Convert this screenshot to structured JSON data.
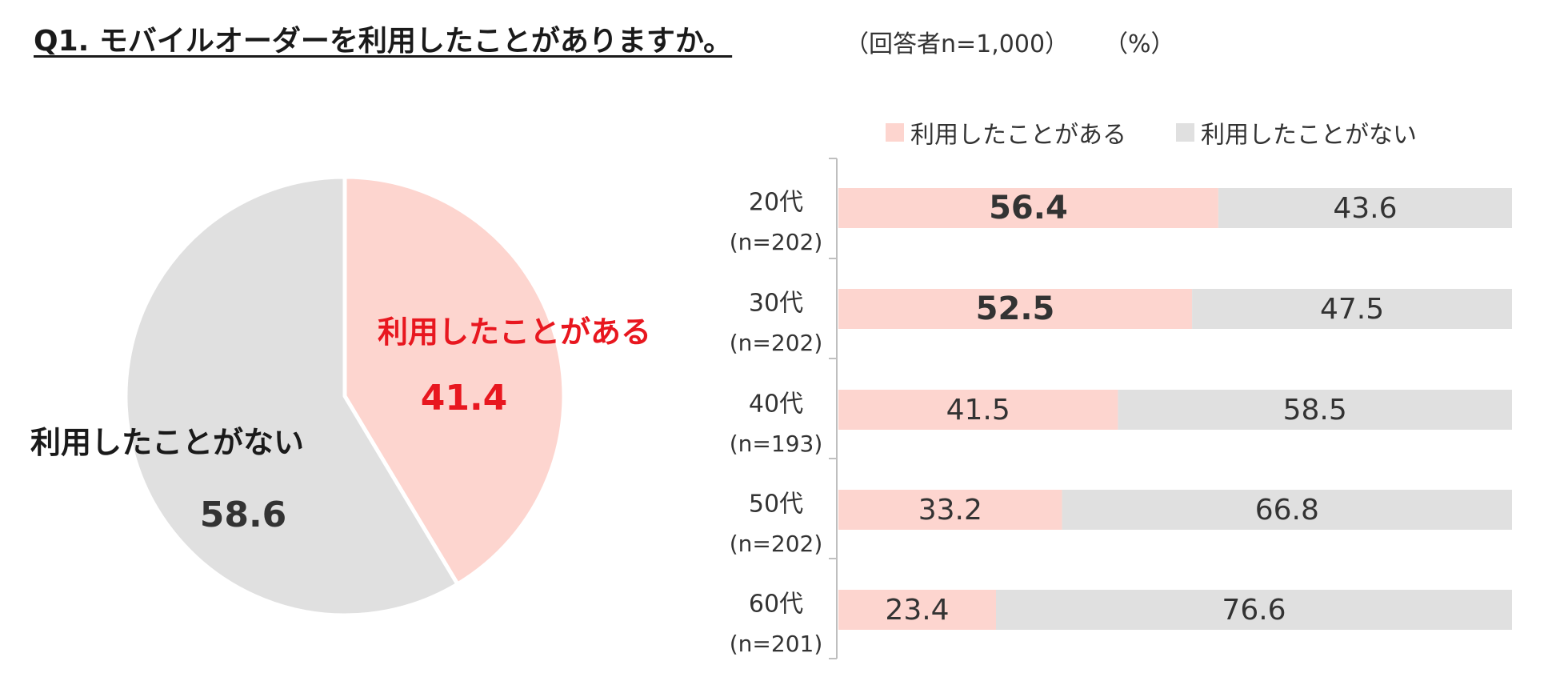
{
  "title": "Q1. モバイルオーダーを利用したことがありますか。",
  "respondents_note": "（回答者n=1,000）",
  "unit_note": "（%）",
  "colors": {
    "used": "#fdd5cf",
    "not_used": "#e0e0e0",
    "used_label": "#e8171f",
    "text": "#333333"
  },
  "legend": {
    "used": "利用したことがある",
    "not_used": "利用したことがない"
  },
  "chart_data": [
    {
      "type": "pie",
      "slices": [
        {
          "label": "利用したことがある",
          "value": 41.4,
          "display": "41.4"
        },
        {
          "label": "利用したことがない",
          "value": 58.6,
          "display": "58.6"
        }
      ]
    },
    {
      "type": "bar",
      "orientation": "horizontal",
      "stacked": true,
      "legend_position": "top-right",
      "categories": [
        {
          "age": "20代",
          "n": "(n=202)"
        },
        {
          "age": "30代",
          "n": "(n=202)"
        },
        {
          "age": "40代",
          "n": "(n=193)"
        },
        {
          "age": "50代",
          "n": "(n=202)"
        },
        {
          "age": "60代",
          "n": "(n=201)"
        }
      ],
      "series": [
        {
          "name": "利用したことがある",
          "values": [
            56.4,
            52.5,
            41.5,
            33.2,
            23.4
          ],
          "labels": [
            "56.4",
            "52.5",
            "41.5",
            "33.2",
            "23.4"
          ],
          "bold": [
            true,
            true,
            false,
            false,
            false
          ]
        },
        {
          "name": "利用したことがない",
          "values": [
            43.6,
            47.5,
            58.5,
            66.8,
            76.6
          ],
          "labels": [
            "43.6",
            "47.5",
            "58.5",
            "66.8",
            "76.6"
          ],
          "bold": [
            false,
            false,
            false,
            false,
            false
          ]
        }
      ],
      "xlim": [
        0,
        100
      ]
    }
  ]
}
